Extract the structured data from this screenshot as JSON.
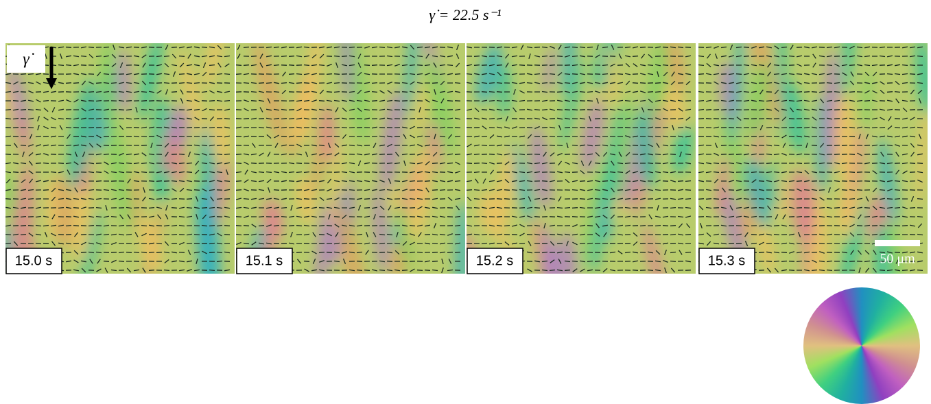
{
  "title": "γ̇ = 22.5 s⁻¹",
  "shear_label": "γ̇",
  "panels": [
    {
      "label": "15.0 s"
    },
    {
      "label": "15.1 s"
    },
    {
      "label": "15.2 s"
    },
    {
      "label": "15.3 s"
    }
  ],
  "scale_bar": "50 μm"
}
